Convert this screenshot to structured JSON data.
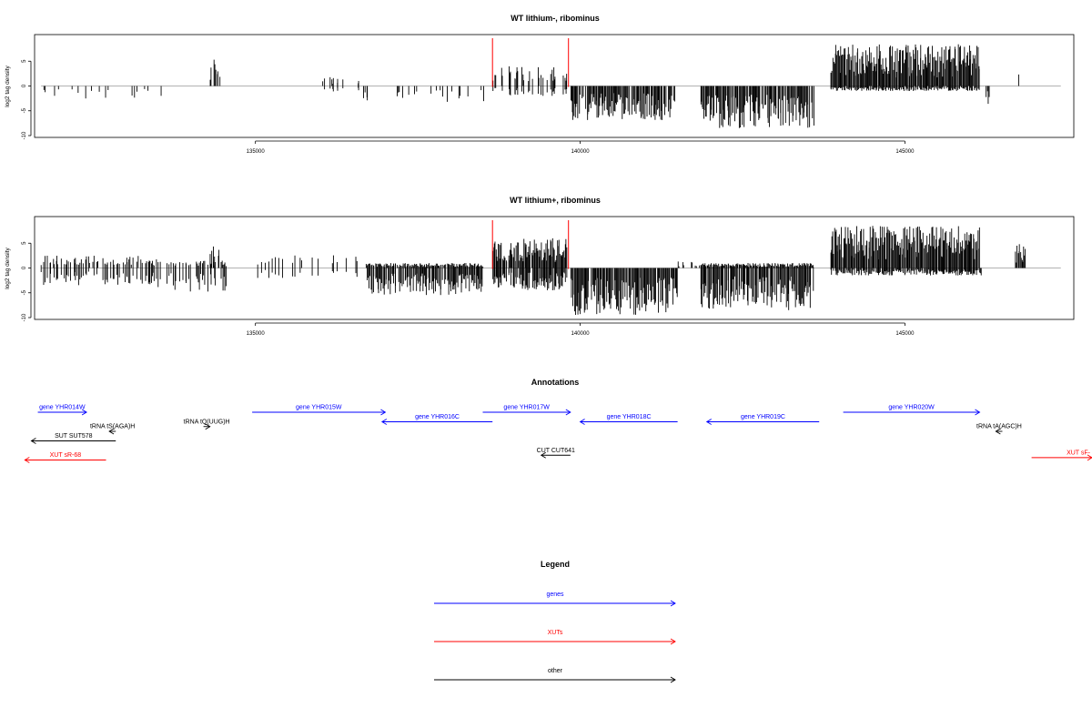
{
  "chart_data": [
    {
      "type": "bar",
      "title": "WT lithium-, ribominus",
      "ylabel": "log2 tag density",
      "xlabel": "",
      "xlim": [
        131600,
        147600
      ],
      "ylim": [
        -10,
        10
      ],
      "x_ticks": [
        135000,
        140000,
        145000
      ],
      "y_ticks": [
        -10,
        -5,
        0,
        5
      ],
      "grid": false,
      "markers": [
        138650,
        139820
      ],
      "marker_color": "#ff0000",
      "bar_color": "#000000",
      "signal_segments": [
        {
          "start": 131700,
          "end": 133600,
          "plus": 0,
          "minus": -3,
          "density": 0.12,
          "seed": 11
        },
        {
          "start": 134300,
          "end": 134450,
          "plus": 5.5,
          "minus": 0,
          "density": 0.5,
          "seed": 12
        },
        {
          "start": 136000,
          "end": 136600,
          "plus": 2,
          "minus": -1.5,
          "density": 0.2,
          "seed": 13
        },
        {
          "start": 136600,
          "end": 138600,
          "plus": 0,
          "minus": -3.5,
          "density": 0.15,
          "seed": 14
        },
        {
          "start": 138650,
          "end": 139800,
          "plus": 4,
          "minus": -2,
          "density": 0.45,
          "seed": 15
        },
        {
          "start": 139850,
          "end": 141450,
          "plus": 0,
          "minus": -7,
          "density": 0.9,
          "seed": 16
        },
        {
          "start": 141850,
          "end": 143600,
          "plus": 0,
          "minus": -8.5,
          "density": 1.0,
          "seed": 17
        },
        {
          "start": 143850,
          "end": 146150,
          "plus": 8.5,
          "minus": -1,
          "density": 1.0,
          "seed": 18
        },
        {
          "start": 146250,
          "end": 146300,
          "plus": 0,
          "minus": -4.5,
          "density": 0.4,
          "seed": 19
        },
        {
          "start": 146750,
          "end": 146850,
          "plus": 3.8,
          "minus": 0,
          "density": 0.4,
          "seed": 20
        }
      ]
    },
    {
      "type": "bar",
      "title": "WT lithium+, ribominus",
      "ylabel": "log2 tag density",
      "xlabel": "",
      "xlim": [
        131600,
        147600
      ],
      "ylim": [
        -10,
        10
      ],
      "x_ticks": [
        135000,
        140000,
        145000
      ],
      "y_ticks": [
        -10,
        -5,
        0,
        5
      ],
      "grid": false,
      "markers": [
        138650,
        139820
      ],
      "marker_color": "#ff0000",
      "bar_color": "#000000",
      "signal_segments": [
        {
          "start": 131700,
          "end": 133500,
          "plus": 2.5,
          "minus": -3.5,
          "density": 0.45,
          "seed": 31
        },
        {
          "start": 133500,
          "end": 134600,
          "plus": 1.5,
          "minus": -5,
          "density": 0.3,
          "seed": 32
        },
        {
          "start": 134300,
          "end": 134450,
          "plus": 5.3,
          "minus": 0,
          "density": 0.4,
          "seed": 33
        },
        {
          "start": 135000,
          "end": 136700,
          "plus": 3,
          "minus": -2,
          "density": 0.15,
          "seed": 34
        },
        {
          "start": 136700,
          "end": 138500,
          "plus": 1,
          "minus": -5.5,
          "density": 0.85,
          "seed": 35
        },
        {
          "start": 138650,
          "end": 139800,
          "plus": 6,
          "minus": -4.5,
          "density": 0.95,
          "seed": 36
        },
        {
          "start": 139850,
          "end": 141500,
          "plus": 0,
          "minus": -9.5,
          "density": 1.0,
          "seed": 37
        },
        {
          "start": 141500,
          "end": 141850,
          "plus": 1.5,
          "minus": 0,
          "density": 0.3,
          "seed": 38
        },
        {
          "start": 141850,
          "end": 143600,
          "plus": 1,
          "minus": -8.5,
          "density": 1.0,
          "seed": 39
        },
        {
          "start": 143850,
          "end": 146150,
          "plus": 8.5,
          "minus": -1.5,
          "density": 1.0,
          "seed": 40
        },
        {
          "start": 146150,
          "end": 146300,
          "plus": 0,
          "minus": -3,
          "density": 0.3,
          "seed": 41
        },
        {
          "start": 146700,
          "end": 146850,
          "plus": 5,
          "minus": 0,
          "density": 1.0,
          "seed": 42
        }
      ]
    }
  ],
  "annotations": {
    "title": "Annotations",
    "features": [
      {
        "label": "gene YHR014W",
        "category": "genes",
        "start": 131650,
        "end": 132400,
        "dir": "right",
        "row": 0
      },
      {
        "label": "gene YHR015W",
        "category": "genes",
        "start": 134950,
        "end": 137000,
        "dir": "right",
        "row": 0
      },
      {
        "label": "gene YHR016C",
        "category": "genes",
        "start": 136950,
        "end": 138650,
        "dir": "left",
        "row": 1
      },
      {
        "label": "gene YHR017W",
        "category": "genes",
        "start": 138500,
        "end": 139850,
        "dir": "right",
        "row": 0
      },
      {
        "label": "gene YHR018C",
        "category": "genes",
        "start": 140000,
        "end": 141500,
        "dir": "left",
        "row": 1
      },
      {
        "label": "gene YHR019C",
        "category": "genes",
        "start": 141950,
        "end": 143680,
        "dir": "left",
        "row": 1
      },
      {
        "label": "gene YHR020W",
        "category": "genes",
        "start": 144050,
        "end": 146150,
        "dir": "right",
        "row": 0
      },
      {
        "label": "tRNA tS(AGA)H",
        "category": "other",
        "start": 132750,
        "end": 132850,
        "dir": "left",
        "row": 2
      },
      {
        "label": "tRNA tQ(UUG)H",
        "category": "other",
        "start": 134200,
        "end": 134300,
        "dir": "right",
        "row": 1.5
      },
      {
        "label": "tRNA tA(AGC)H",
        "category": "other",
        "start": 146400,
        "end": 146500,
        "dir": "left",
        "row": 2
      },
      {
        "label": "SUT SUT578",
        "category": "other",
        "start": 131550,
        "end": 132850,
        "dir": "left",
        "row": 3
      },
      {
        "label": "CUT CUT641",
        "category": "other",
        "start": 139400,
        "end": 139850,
        "dir": "left",
        "row": 4.5
      },
      {
        "label": "XUT sR-68",
        "category": "XUTs",
        "start": 131450,
        "end": 132700,
        "dir": "left",
        "row": 5
      },
      {
        "label": "XUT sF-",
        "category": "XUTs",
        "start": 146950,
        "end": 148200,
        "dir": "right",
        "row": 4.75
      }
    ]
  },
  "legend": {
    "title": "Legend",
    "items": [
      {
        "label": "genes",
        "color": "#0000ff"
      },
      {
        "label": "XUTs",
        "color": "#ff0000"
      },
      {
        "label": "other",
        "color": "#000000"
      }
    ]
  },
  "colors": {
    "genes": "#0000ff",
    "XUTs": "#ff0000",
    "other": "#000000"
  }
}
